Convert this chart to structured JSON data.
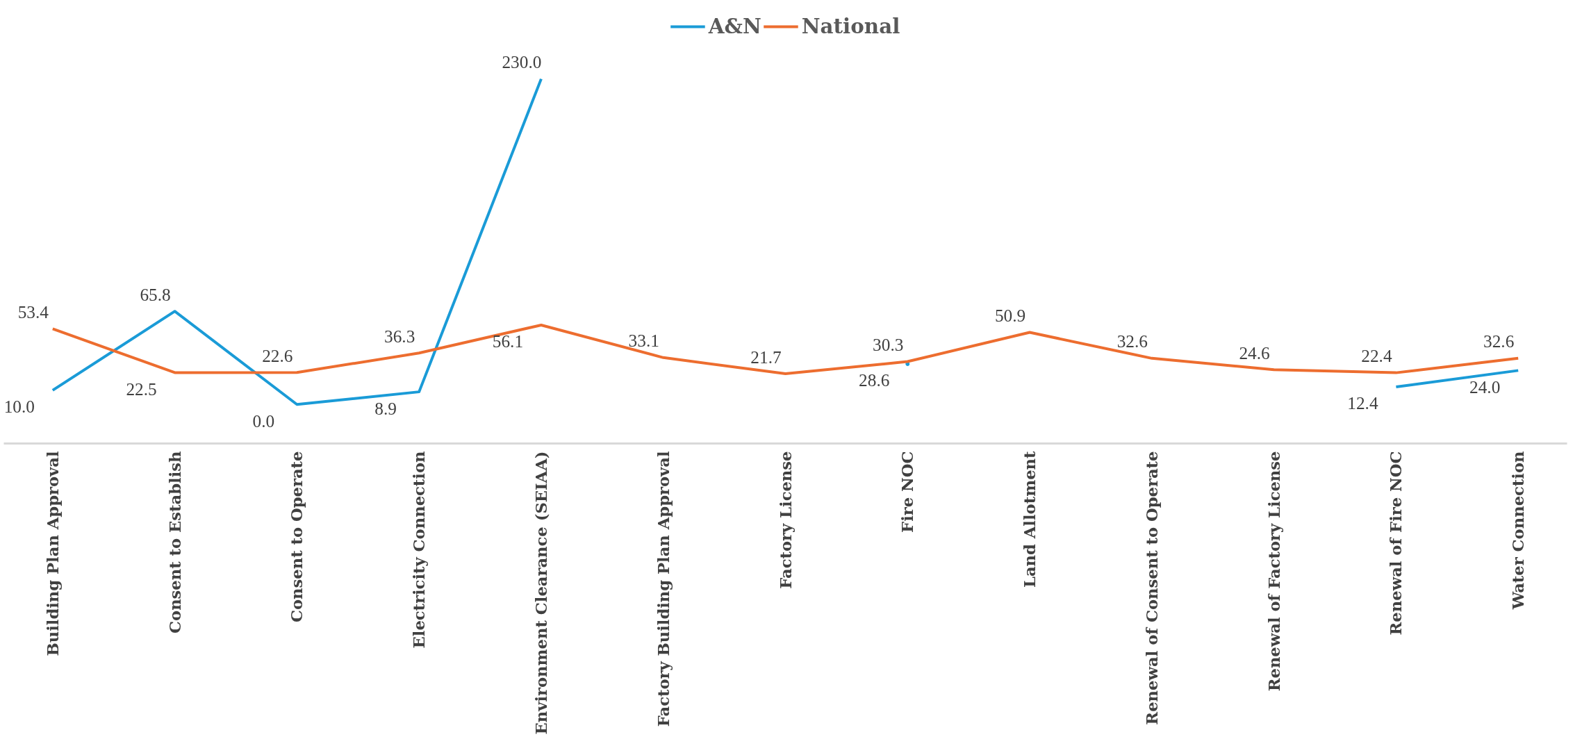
{
  "chart_data": {
    "type": "line",
    "categories": [
      "Building Plan Approval",
      "Consent to Establish",
      "Consent to Operate",
      "Electricity Connection",
      "Environment Clearance (SEIAA)",
      "Factory Building Plan Approval",
      "Factory License",
      "Fire NOC",
      "Land Allotment",
      "Renewal of Consent to Operate",
      "Renewal of Factory License",
      "Renewal of Fire NOC",
      "Water Connection"
    ],
    "series": [
      {
        "name": "A&N",
        "color": "#1a9bd7",
        "values": [
          10.0,
          65.8,
          0.0,
          8.9,
          230.0,
          null,
          null,
          28.6,
          null,
          null,
          null,
          12.4,
          24.0
        ],
        "value_labels": [
          "10.0",
          "65.8",
          "0.0",
          "8.9",
          "230.0",
          null,
          null,
          "28.6",
          null,
          null,
          null,
          "12.4",
          "24.0"
        ]
      },
      {
        "name": "National",
        "color": "#ed6d2f",
        "values": [
          53.4,
          22.5,
          22.6,
          36.3,
          56.1,
          33.1,
          21.7,
          30.3,
          50.9,
          32.6,
          24.6,
          22.4,
          32.6
        ],
        "value_labels": [
          "53.4",
          "22.5",
          "22.6",
          "36.3",
          "56.1",
          "33.1",
          "21.7",
          "30.3",
          "50.9",
          "32.6",
          "24.6",
          "22.4",
          "32.6"
        ]
      }
    ],
    "data_labels": true,
    "legend": "top",
    "grid": false,
    "marker": "none",
    "line_style": "solid"
  }
}
